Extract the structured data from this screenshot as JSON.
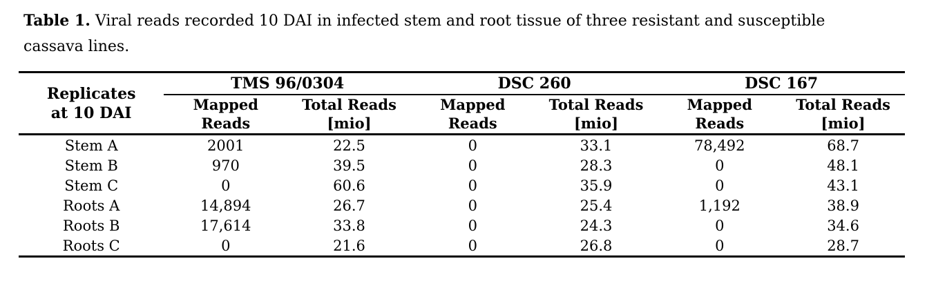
{
  "caption": {
    "label": "Table 1.",
    "text": "Viral reads recorded 10 DAI in infected stem and root tissue of three resistant and susceptible cassava lines."
  },
  "table": {
    "stub_header": {
      "line1": "Replicates",
      "line2": "at 10 DAI"
    },
    "column_groups": [
      "TMS 96/0304",
      "DSC 260",
      "DSC 167"
    ],
    "subheaders": {
      "mapped": "Mapped Reads",
      "total": "Total Reads",
      "unit": "[mio]"
    },
    "rows": [
      {
        "label": "Stem A",
        "values": [
          "2001",
          "22.5",
          "0",
          "33.1",
          "78,492",
          "68.7"
        ]
      },
      {
        "label": "Stem B",
        "values": [
          "970",
          "39.5",
          "0",
          "28.3",
          "0",
          "48.1"
        ]
      },
      {
        "label": "Stem C",
        "values": [
          "0",
          "60.6",
          "0",
          "35.9",
          "0",
          "43.1"
        ]
      },
      {
        "label": "Roots A",
        "values": [
          "14,894",
          "26.7",
          "0",
          "25.4",
          "1,192",
          "38.9"
        ]
      },
      {
        "label": "Roots B",
        "values": [
          "17,614",
          "33.8",
          "0",
          "24.3",
          "0",
          "34.6"
        ]
      },
      {
        "label": "Roots C",
        "values": [
          "0",
          "21.6",
          "0",
          "26.8",
          "0",
          "28.7"
        ]
      }
    ]
  },
  "colors": {
    "text": "#000000",
    "rules": "#000000",
    "background": "#ffffff"
  }
}
